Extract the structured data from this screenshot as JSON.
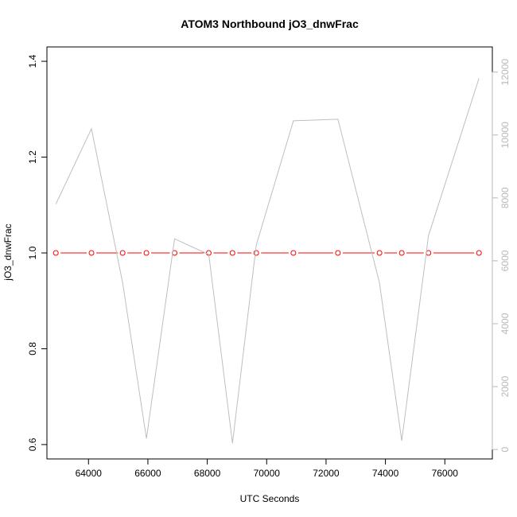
{
  "chart_data": {
    "type": "line",
    "title": "ATOM3 Northbound jO3_dnwFrac",
    "xlabel": "UTC Seconds",
    "ylabel": "jO3_dnwFrac",
    "xlim": [
      62600,
      77600
    ],
    "ylim": [
      0.57,
      1.43
    ],
    "y2lim": [
      -300,
      12800
    ],
    "x_ticks": [
      64000,
      66000,
      68000,
      70000,
      72000,
      74000,
      76000
    ],
    "y_ticks": [
      0.6,
      0.8,
      1.0,
      1.2,
      1.4
    ],
    "y2_ticks": [
      0,
      2000,
      4000,
      6000,
      8000,
      10000,
      12000
    ],
    "grid": false,
    "series": [
      {
        "axis": "left",
        "color": "#ff0000",
        "marker": "open-circle",
        "x": [
          62900,
          64100,
          65150,
          65950,
          66900,
          68050,
          68850,
          69650,
          70900,
          72400,
          73800,
          74550,
          75450,
          77150
        ],
        "y": [
          1.0,
          1.0,
          1.0,
          1.0,
          1.0,
          1.0,
          1.0,
          1.0,
          1.0,
          1.0,
          1.0,
          1.0,
          1.0,
          1.0
        ]
      },
      {
        "axis": "right",
        "color": "#bebebe",
        "marker": "none",
        "x": [
          62900,
          64100,
          65150,
          65950,
          66900,
          68050,
          68850,
          69650,
          70900,
          72400,
          73800,
          74550,
          75450,
          77150
        ],
        "y": [
          7800,
          10200,
          5300,
          350,
          6700,
          6200,
          200,
          6500,
          10450,
          10500,
          5300,
          280,
          6800,
          11800
        ]
      }
    ]
  }
}
